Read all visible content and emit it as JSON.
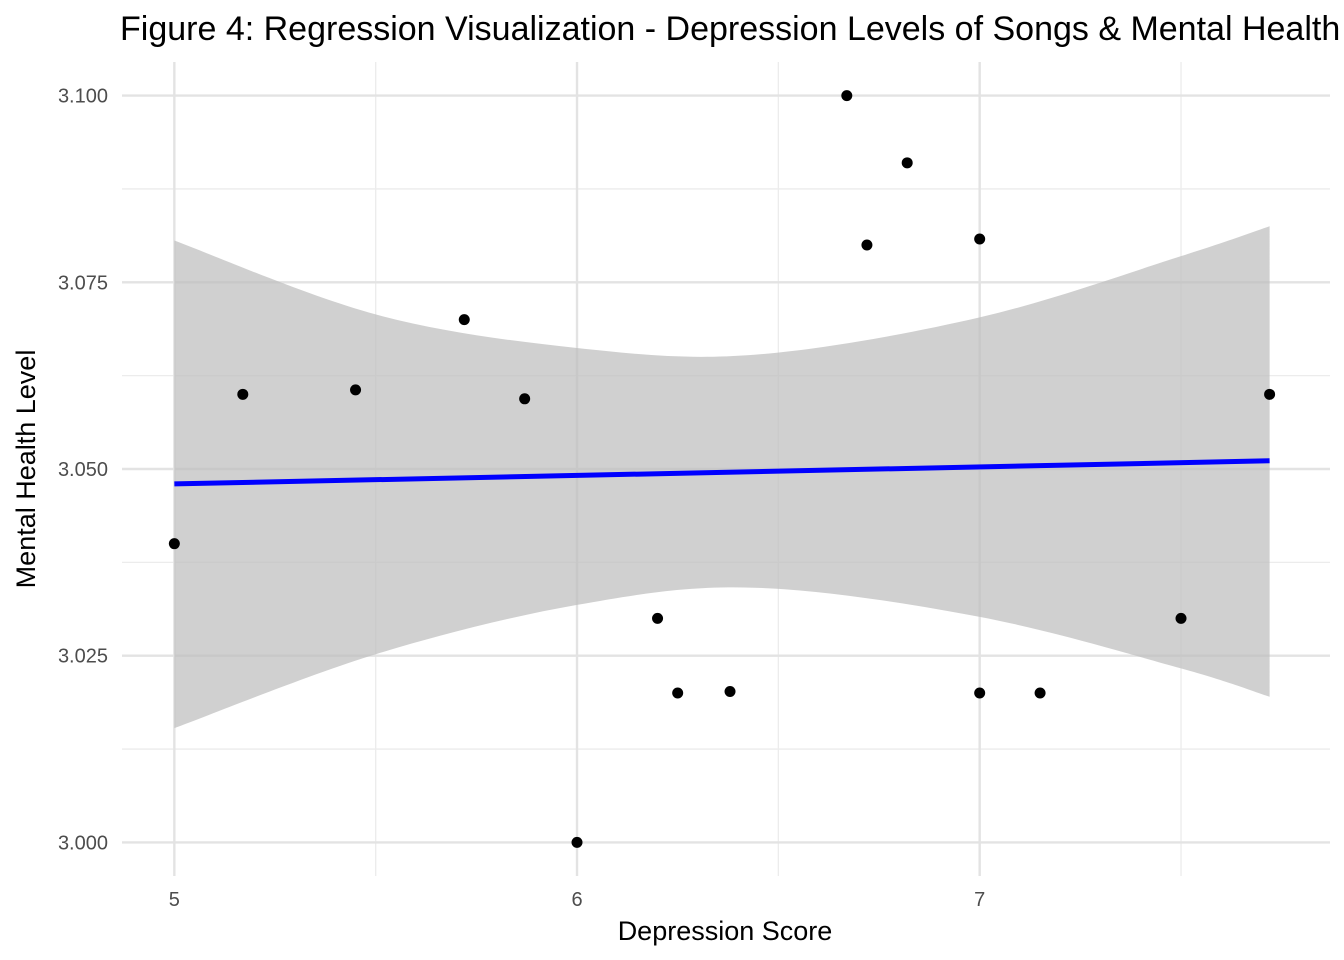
{
  "chart_data": {
    "type": "scatter",
    "title": "Figure 4: Regression Visualization - Depression Levels of Songs & Mental Health",
    "xlabel": "Depression Score",
    "ylabel": "Mental Health Level",
    "xlim": [
      4.87,
      7.87
    ],
    "ylim": [
      2.9955,
      3.1045
    ],
    "x_ticks": [
      5,
      6,
      7
    ],
    "x_tick_labels": [
      "5",
      "6",
      "7"
    ],
    "y_ticks": [
      3.0,
      3.025,
      3.05,
      3.075,
      3.1
    ],
    "y_tick_labels": [
      "3.000",
      "3.025",
      "3.050",
      "3.075",
      "3.100"
    ],
    "grid": true,
    "legend": "none",
    "series": [
      {
        "type": "scatter",
        "color": "#000000",
        "x": [
          5.0,
          5.17,
          5.45,
          5.72,
          5.87,
          6.0,
          6.2,
          6.25,
          6.38,
          6.67,
          6.72,
          6.82,
          7.0,
          7.0,
          7.15,
          7.5,
          7.72
        ],
        "y": [
          3.04,
          3.06,
          3.0606,
          3.07,
          3.0594,
          3.0,
          3.03,
          3.02,
          3.0202,
          3.1,
          3.08,
          3.091,
          3.0808,
          3.02,
          3.02,
          3.03,
          3.06
        ]
      },
      {
        "type": "line",
        "color": "#0000ff",
        "x": [
          5.0,
          7.72
        ],
        "y": [
          3.048,
          3.0511
        ]
      },
      {
        "type": "area",
        "color": "#bebebe",
        "x": [
          5.0,
          5.5,
          6.0,
          6.44,
          7.0,
          7.5,
          7.72
        ],
        "upper": [
          3.0806,
          3.0707,
          3.0662,
          3.0653,
          3.0703,
          3.0785,
          3.0825
        ],
        "lower": [
          3.0153,
          3.0252,
          3.0318,
          3.0341,
          3.0302,
          3.0233,
          3.0195
        ]
      }
    ]
  }
}
